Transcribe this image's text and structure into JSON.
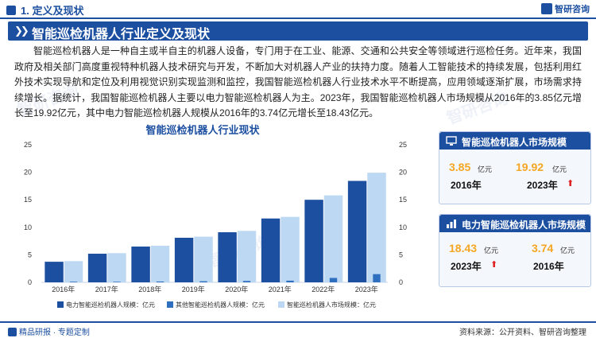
{
  "header": {
    "section": "1. 定义及现状",
    "logo": "智研咨询"
  },
  "title": "智能巡检机器人行业定义及现状",
  "paragraph": "智能巡检机器人是一种自主或半自主的机器人设备，专门用于在工业、能源、交通和公共安全等领域进行巡检任务。近年来，我国政府及相关部门高度重视特种机器人技术研究与开发，不断加大对机器人产业的扶持力度。随着人工智能技术的持续发展，包括利用红外技术实现导航和定位及利用视觉识别实现监测和监控，我国智能巡检机器人行业技术水平不断提高，应用领域逐渐扩展，市场需求持续增长。据统计，我国智能巡检机器人主要以电力智能巡检机器人为主。2023年，我国智能巡检机器人市场规模从2016年的3.85亿元增长至19.92亿元，其中电力智能巡检机器人规模从2016年的3.74亿元增长至18.43亿元。",
  "chart_data": {
    "type": "bar",
    "title": "智能巡检机器人行业现状",
    "categories": [
      "2016年",
      "2017年",
      "2018年",
      "2019年",
      "2020年",
      "2021年",
      "2022年",
      "2023年"
    ],
    "ylim": [
      0,
      25
    ],
    "yticks": [
      "0",
      "5",
      "10",
      "15",
      "20",
      "25"
    ],
    "series": [
      {
        "name": "电力智能巡检机器人规模：亿元",
        "color": "#1c4fa0",
        "values": [
          3.74,
          5.2,
          6.5,
          8.1,
          9.1,
          11.6,
          15.0,
          18.43
        ]
      },
      {
        "name": "其他智能巡检机器人规模：亿元",
        "color": "#2f6fc0",
        "values": [
          0.11,
          0.1,
          0.15,
          0.2,
          0.25,
          0.3,
          0.8,
          1.49
        ]
      },
      {
        "name": "智能巡检机器人市场规模：亿元",
        "color": "#bcd8f2",
        "values": [
          3.85,
          5.3,
          6.65,
          8.3,
          9.35,
          11.9,
          15.8,
          19.92
        ]
      }
    ]
  },
  "card1": {
    "title": "智能巡检机器人市场规模",
    "start_value": "3.85",
    "start_unit": "亿元",
    "start_year": "2016年",
    "end_value": "19.92",
    "end_unit": "亿元",
    "end_year": "2023年"
  },
  "card2": {
    "title": "电力智能巡检机器人市场规模",
    "end_value": "18.43",
    "end_unit": "亿元",
    "end_year": "2023年",
    "start_value": "3.74",
    "start_unit": "亿元",
    "start_year": "2016年"
  },
  "footer": {
    "left": "精品研报 · 专题定制",
    "right": "资料来源：公开资料、智研咨询整理"
  },
  "colors": {
    "brand": "#1c4fa0",
    "accent": "#f5a623",
    "up_arrow": "#e02020"
  }
}
